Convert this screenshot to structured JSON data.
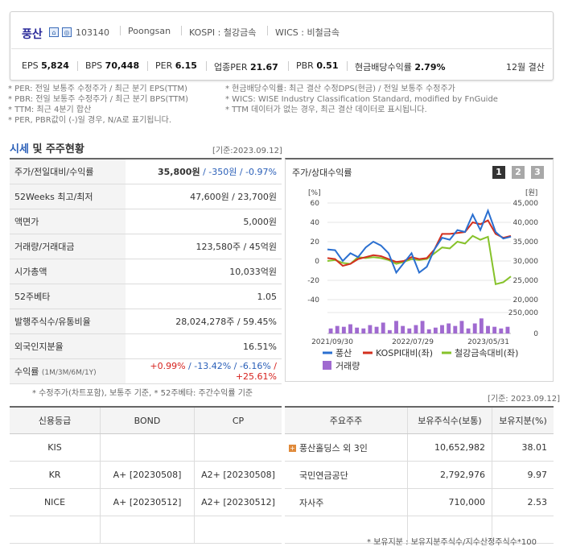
{
  "header": {
    "name": "풍산",
    "code": "103140",
    "eng": "Poongsan",
    "kospi": "KOSPI : 철강금속",
    "wics": "WICS : 비철금속",
    "metrics": [
      {
        "label": "EPS",
        "value": "5,824"
      },
      {
        "label": "BPS",
        "value": "70,448"
      },
      {
        "label": "PER",
        "value": "6.15"
      },
      {
        "label": "업종PER",
        "value": "21.67"
      },
      {
        "label": "PBR",
        "value": "0.51"
      },
      {
        "label": "현금배당수익률",
        "value": "2.79%"
      }
    ],
    "settle": "12월 결산"
  },
  "notes": {
    "l1": "* PER: 전일 보통주 수정주가 / 최근 분기 EPS(TTM)",
    "l2": "* PBR: 전일 보통주 수정주가 / 최근 분기 BPS(TTM)",
    "l3": "* TTM: 최근 4분기 합산",
    "l4": "* PER, PBR값이 (-)일 경우, N/A로 표기됩니다.",
    "r1": "* 현금배당수익률: 최근 결산 수정DPS(현금) / 전일 보통주 수정주가",
    "r2": "* WICS: WISE Industry Classification Standard, modified by FnGuide",
    "r3": "* TTM 데이터가 없는 경우, 최근 결산 데이터로 표시됩니다."
  },
  "market": {
    "title_a": "시세",
    "title_b": " 및 주주현황",
    "date": "[기준:2023.09.12]",
    "rows": [
      {
        "k": "주가/전일대비/수익률",
        "v1": "35,800원",
        "v2": " / -350원",
        "v3": " / -0.97%"
      },
      {
        "k": "52Weeks 최고/최저",
        "v": "47,600원 / 23,700원"
      },
      {
        "k": "액면가",
        "v": "5,000원"
      },
      {
        "k": "거래량/거래대금",
        "v": "123,580주 / 45억원"
      },
      {
        "k": "시가총액",
        "v": "10,033억원"
      },
      {
        "k": "52주베타",
        "v": "1.05"
      },
      {
        "k": "발행주식수/유통비율",
        "v": "28,024,278주 / 59.45%"
      },
      {
        "k": "외국인지분율",
        "v": "16.51%"
      }
    ],
    "ret_label": "수익률",
    "ret_sub": "(1M/3M/6M/1Y)",
    "ret": [
      "+0.99%",
      " / -13.42%",
      " / -6.16%",
      " / +25.61%"
    ],
    "footnote": "* 수정주가(차트포함), 보통주 기준, * 52주베타: 주간수익률 기준"
  },
  "chart": {
    "title": "주가/상대수익률",
    "tabs": [
      "1",
      "2",
      "3"
    ],
    "left_unit": "[%]",
    "right_unit": "[원]",
    "legend": {
      "a": "풍산",
      "b": "KOSPI대비(좌)",
      "c": "철강금속대비(좌)",
      "d": "거래량"
    },
    "colors": {
      "price": "#2a6fd0",
      "kospi": "#d32f1e",
      "steel": "#86c22a",
      "vol": "#a06ad0"
    }
  },
  "chart_data": {
    "type": "line",
    "x_ticks": [
      "2021/09/30",
      "2022/07/29",
      "2023/05/31"
    ],
    "y_left_ticks": [
      60,
      40,
      20,
      0,
      -20,
      -40
    ],
    "y_left_range": [
      -40,
      60
    ],
    "y_right_ticks": [
      "45,000",
      "40,000",
      "35,000",
      "30,000",
      "25,000",
      "20,000"
    ],
    "y_right_range": [
      20000,
      45000
    ],
    "vol_ticks": [
      "250,000",
      "0"
    ],
    "vol_max": 250000,
    "series": [
      {
        "name": "풍산",
        "axis": "right",
        "values": [
          33000,
          32800,
          30000,
          32000,
          31000,
          33500,
          35000,
          34000,
          32000,
          27000,
          29500,
          32000,
          27000,
          28500,
          33000,
          36000,
          35500,
          38000,
          37500,
          42000,
          38000,
          43000,
          37500,
          35800,
          36300
        ]
      },
      {
        "name": "KOSPI대비(좌)",
        "axis": "left",
        "values": [
          3,
          2,
          -5,
          -3,
          2,
          4,
          6,
          5,
          2,
          -1,
          0,
          4,
          2,
          3,
          12,
          28,
          28,
          29,
          30,
          40,
          38,
          42,
          28,
          24,
          26
        ]
      },
      {
        "name": "철강금속대비(좌)",
        "axis": "left",
        "values": [
          0,
          1,
          -2,
          -3,
          4,
          3,
          4,
          3,
          1,
          -3,
          -1,
          2,
          1,
          2,
          8,
          14,
          13,
          20,
          18,
          26,
          22,
          25,
          -24,
          -22,
          -16
        ]
      },
      {
        "name": "거래량",
        "axis": "vol",
        "values": [
          60000,
          90000,
          80000,
          110000,
          70000,
          60000,
          100000,
          80000,
          130000,
          40000,
          150000,
          90000,
          60000,
          100000,
          150000,
          50000,
          70000,
          100000,
          120000,
          90000,
          150000,
          60000,
          120000,
          180000,
          90000,
          80000,
          60000,
          80000
        ]
      }
    ]
  },
  "credit": {
    "headers": [
      "신용등급",
      "BOND",
      "CP"
    ],
    "rows": [
      {
        "agency": "KIS",
        "bond": "",
        "cp": ""
      },
      {
        "agency": "KR",
        "bond": "A+  [20230508]",
        "cp": "A2+  [20230508]"
      },
      {
        "agency": "NICE",
        "bond": "A+  [20230512]",
        "cp": "A2+  [20230512]"
      },
      {
        "agency": "",
        "bond": "",
        "cp": ""
      }
    ]
  },
  "holders": {
    "date": "[기준: 2023.09.12]",
    "headers": [
      "주요주주",
      "보유주식수(보통)",
      "보유지분(%)"
    ],
    "rows": [
      {
        "name": "풍산홀딩스 외 3인",
        "shares": "10,652,982",
        "pct": "38.01"
      },
      {
        "name": "국민연금공단",
        "shares": "2,792,976",
        "pct": "9.97"
      },
      {
        "name": "자사주",
        "shares": "710,000",
        "pct": "2.53"
      },
      {
        "name": "",
        "shares": "",
        "pct": ""
      }
    ],
    "footnote": "* 보유지분 : 보유지분주식수/지수산정주식수*100"
  }
}
